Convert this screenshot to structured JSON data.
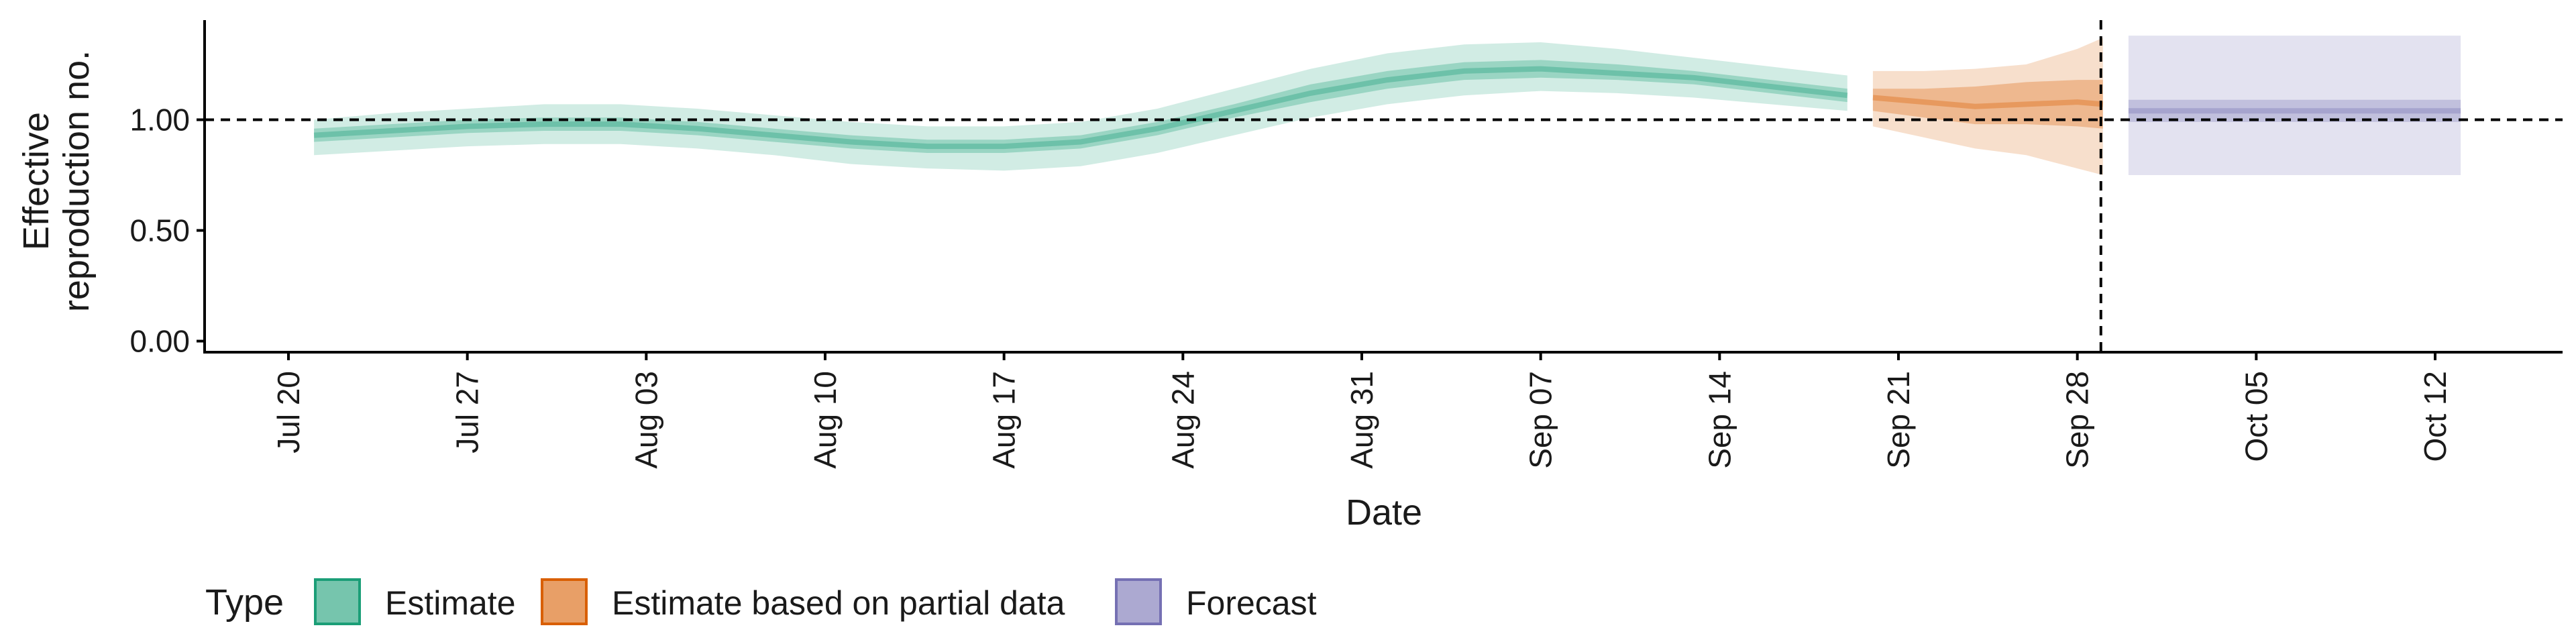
{
  "chart_data": {
    "type": "area",
    "title": "",
    "xlabel": "Date",
    "ylabel_lines": [
      "Effective",
      "reproduction no."
    ],
    "x_ticks": [
      "Jul 20",
      "Jul 27",
      "Aug 03",
      "Aug 10",
      "Aug 17",
      "Aug 24",
      "Aug 31",
      "Sep 07",
      "Sep 14",
      "Sep 21",
      "Sep 28",
      "Oct 05",
      "Oct 12"
    ],
    "y_ticks": [
      "0.00",
      "0.50",
      "1.00"
    ],
    "ylim": [
      -0.05,
      1.45
    ],
    "reference_line_y": 1.0,
    "forecast_start_date": "Sep 29",
    "legend": {
      "title": "Type",
      "position": "bottom-left",
      "items": [
        {
          "label": "Estimate",
          "color": "#1b9e77"
        },
        {
          "label": "Estimate based on partial data",
          "color": "#d95f02"
        },
        {
          "label": "Forecast",
          "color": "#7570b3"
        }
      ]
    },
    "series": [
      {
        "name": "Estimate",
        "color": "#1b9e77",
        "x": [
          "Jul 21",
          "Jul 24",
          "Jul 27",
          "Jul 30",
          "Aug 02",
          "Aug 05",
          "Aug 08",
          "Aug 11",
          "Aug 14",
          "Aug 17",
          "Aug 20",
          "Aug 23",
          "Aug 26",
          "Aug 29",
          "Sep 01",
          "Sep 04",
          "Sep 07",
          "Sep 10",
          "Sep 13",
          "Sep 16",
          "Sep 19"
        ],
        "median": [
          0.93,
          0.95,
          0.97,
          0.98,
          0.98,
          0.96,
          0.93,
          0.9,
          0.88,
          0.88,
          0.9,
          0.96,
          1.04,
          1.12,
          1.18,
          1.22,
          1.23,
          1.21,
          1.19,
          1.15,
          1.11
        ],
        "inner_lower": [
          0.9,
          0.92,
          0.94,
          0.95,
          0.95,
          0.93,
          0.9,
          0.87,
          0.85,
          0.85,
          0.87,
          0.93,
          1.01,
          1.08,
          1.14,
          1.18,
          1.19,
          1.18,
          1.16,
          1.12,
          1.08
        ],
        "inner_upper": [
          0.96,
          0.98,
          1.0,
          1.01,
          1.01,
          0.99,
          0.96,
          0.93,
          0.91,
          0.91,
          0.93,
          0.99,
          1.07,
          1.16,
          1.22,
          1.26,
          1.27,
          1.25,
          1.22,
          1.18,
          1.14
        ],
        "outer_lower": [
          0.84,
          0.86,
          0.88,
          0.89,
          0.89,
          0.87,
          0.84,
          0.8,
          0.78,
          0.77,
          0.79,
          0.85,
          0.93,
          1.01,
          1.07,
          1.11,
          1.13,
          1.12,
          1.1,
          1.07,
          1.04
        ],
        "outer_upper": [
          1.0,
          1.03,
          1.05,
          1.07,
          1.07,
          1.05,
          1.02,
          0.99,
          0.97,
          0.97,
          0.99,
          1.05,
          1.14,
          1.23,
          1.3,
          1.34,
          1.35,
          1.32,
          1.28,
          1.24,
          1.2
        ]
      },
      {
        "name": "Estimate based on partial data",
        "color": "#d95f02",
        "x": [
          "Sep 20",
          "Sep 22",
          "Sep 24",
          "Sep 26",
          "Sep 28",
          "Sep 29"
        ],
        "median": [
          1.1,
          1.08,
          1.06,
          1.07,
          1.08,
          1.07
        ],
        "inner_lower": [
          1.04,
          1.01,
          0.98,
          0.98,
          0.97,
          0.96
        ],
        "inner_upper": [
          1.14,
          1.14,
          1.15,
          1.17,
          1.18,
          1.18
        ],
        "outer_lower": [
          0.97,
          0.92,
          0.87,
          0.84,
          0.78,
          0.75
        ],
        "outer_upper": [
          1.22,
          1.22,
          1.23,
          1.25,
          1.32,
          1.37
        ]
      },
      {
        "name": "Forecast",
        "color": "#7570b3",
        "x": [
          "Sep 30",
          "Oct 13"
        ],
        "median": [
          1.04,
          1.04
        ],
        "inner_lower": [
          0.99,
          0.99
        ],
        "inner_upper": [
          1.09,
          1.09
        ],
        "outer_lower": [
          0.75,
          0.75
        ],
        "outer_upper": [
          1.38,
          1.38
        ]
      }
    ]
  }
}
